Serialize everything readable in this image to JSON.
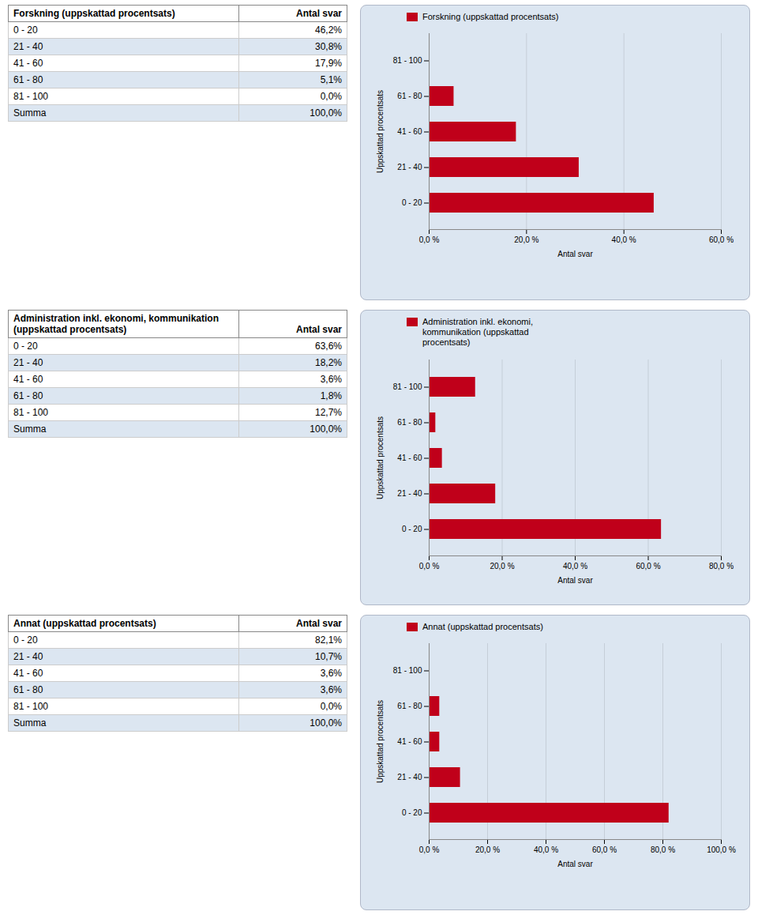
{
  "chart_data": [
    {
      "type": "table",
      "columns": [
        "Forskning (uppskattad procentsats)",
        "Antal svar"
      ],
      "rows": [
        [
          "0 - 20",
          "46,2%"
        ],
        [
          "21 - 40",
          "30,8%"
        ],
        [
          "41 - 60",
          "17,9%"
        ],
        [
          "61 - 80",
          "5,1%"
        ],
        [
          "81 - 100",
          "0,0%"
        ],
        [
          "Summa",
          "100,0%"
        ]
      ]
    },
    {
      "type": "bar",
      "orientation": "horizontal",
      "categories": [
        "0 - 20",
        "21 - 40",
        "41 - 60",
        "61 - 80",
        "81 - 100"
      ],
      "series": [
        {
          "name": "Forskning (uppskattad procentsats)",
          "color": "#C0001A",
          "values": [
            46.2,
            30.8,
            17.9,
            5.1,
            0.0
          ]
        }
      ],
      "xlim": [
        0,
        60
      ],
      "xticks": [
        {
          "value": 0,
          "label": "0,0 %"
        },
        {
          "value": 20,
          "label": "20,0 %"
        },
        {
          "value": 40,
          "label": "40,0 %"
        },
        {
          "value": 60,
          "label": "60,0 %"
        }
      ],
      "xlabel": "Antal svar",
      "ylabel": "Uppskattad procentsats",
      "grid": true,
      "legend": "upper left"
    },
    {
      "type": "table",
      "columns": [
        "Administration inkl. ekonomi, kommunikation\n(uppskattad procentsats)",
        "Antal svar"
      ],
      "rows": [
        [
          "0 - 20",
          "63,6%"
        ],
        [
          "21 - 40",
          "18,2%"
        ],
        [
          "41 - 60",
          "3,6%"
        ],
        [
          "61 - 80",
          "1,8%"
        ],
        [
          "81 - 100",
          "12,7%"
        ],
        [
          "Summa",
          "100,0%"
        ]
      ]
    },
    {
      "type": "bar",
      "orientation": "horizontal",
      "categories": [
        "0 - 20",
        "21 - 40",
        "41 - 60",
        "61 - 80",
        "81 - 100"
      ],
      "series": [
        {
          "name": "Administration inkl. ekonomi,\nkommunikation (uppskattad\nprocentsats)",
          "color": "#C0001A",
          "values": [
            63.6,
            18.2,
            3.6,
            1.8,
            12.7
          ]
        }
      ],
      "xlim": [
        0,
        80
      ],
      "xticks": [
        {
          "value": 0,
          "label": "0,0 %"
        },
        {
          "value": 20,
          "label": "20,0 %"
        },
        {
          "value": 40,
          "label": "40,0 %"
        },
        {
          "value": 60,
          "label": "60,0 %"
        },
        {
          "value": 80,
          "label": "80,0 %"
        }
      ],
      "xlabel": "Antal svar",
      "ylabel": "Uppskattad procentsats",
      "grid": true,
      "legend": "upper left"
    },
    {
      "type": "table",
      "columns": [
        "Annat (uppskattad procentsats)",
        "Antal svar"
      ],
      "rows": [
        [
          "0 - 20",
          "82,1%"
        ],
        [
          "21 - 40",
          "10,7%"
        ],
        [
          "41 - 60",
          "3,6%"
        ],
        [
          "61 - 80",
          "3,6%"
        ],
        [
          "81 - 100",
          "0,0%"
        ],
        [
          "Summa",
          "100,0%"
        ]
      ]
    },
    {
      "type": "bar",
      "orientation": "horizontal",
      "categories": [
        "0 - 20",
        "21 - 40",
        "41 - 60",
        "61 - 80",
        "81 - 100"
      ],
      "series": [
        {
          "name": "Annat (uppskattad procentsats)",
          "color": "#C0001A",
          "values": [
            82.1,
            10.7,
            3.6,
            3.6,
            0.0
          ]
        }
      ],
      "xlim": [
        0,
        100
      ],
      "xticks": [
        {
          "value": 0,
          "label": "0,0 %"
        },
        {
          "value": 20,
          "label": "20,0 %"
        },
        {
          "value": 40,
          "label": "40,0 %"
        },
        {
          "value": 60,
          "label": "60,0 %"
        },
        {
          "value": 80,
          "label": "80,0 %"
        },
        {
          "value": 100,
          "label": "100,0 %"
        }
      ],
      "xlabel": "Antal svar",
      "ylabel": "Uppskattad procentsats",
      "grid": true,
      "legend": "upper left"
    }
  ]
}
